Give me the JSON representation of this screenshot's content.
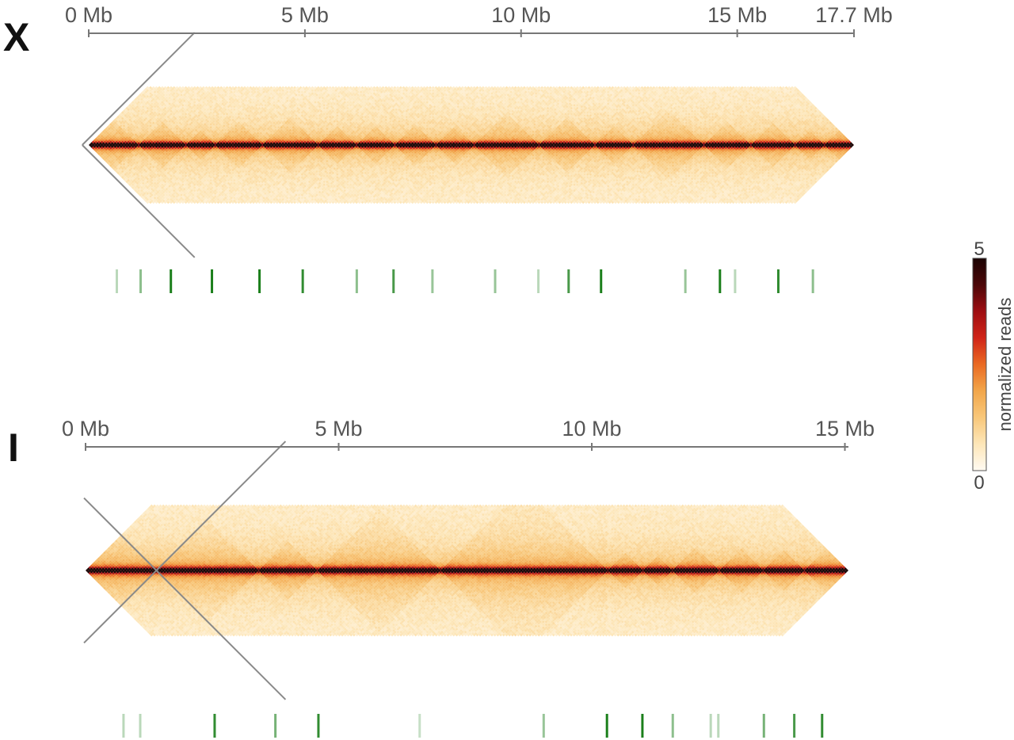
{
  "figure": {
    "colormap": [
      "#fffaf2",
      "#fde6b8",
      "#f8c77a",
      "#f2a64a",
      "#ea6a22",
      "#d02418",
      "#9e0e12",
      "#4c0708",
      "#1a0303"
    ],
    "axis_color": "#777777",
    "track_color": "#1b7f1b"
  },
  "colorbar": {
    "label": "normalized reads",
    "min_label": "0",
    "max_label": "5",
    "range": [
      0,
      5
    ]
  },
  "chart_data": [
    {
      "type": "heatmap",
      "panel_label": "X",
      "title": "",
      "xlabel": "",
      "ylabel": "",
      "xlim": [
        0,
        17.7
      ],
      "unit": "Mb",
      "ticks": [
        0,
        5,
        10,
        15,
        17.7
      ],
      "tick_labels": [
        "0 Mb",
        "5 Mb",
        "10 Mb",
        "15 Mb",
        "17.7 Mb"
      ],
      "triangle_view": true,
      "max_distance_mb": 2.6,
      "value_range": [
        0,
        5
      ],
      "boundaries_mb": [
        0.0,
        1.13,
        2.25,
        2.9,
        4.0,
        5.3,
        6.2,
        7.05,
        8.0,
        8.95,
        10.4,
        11.7,
        12.6,
        14.2,
        15.3,
        16.35,
        17.0,
        17.7
      ],
      "boundary_ticks": [
        {
          "pos": 0.65,
          "strength": 0.3
        },
        {
          "pos": 1.2,
          "strength": 0.5
        },
        {
          "pos": 1.9,
          "strength": 1.0
        },
        {
          "pos": 2.85,
          "strength": 1.0
        },
        {
          "pos": 3.95,
          "strength": 1.0
        },
        {
          "pos": 4.95,
          "strength": 0.9
        },
        {
          "pos": 6.2,
          "strength": 0.5
        },
        {
          "pos": 7.05,
          "strength": 0.8
        },
        {
          "pos": 7.95,
          "strength": 0.45
        },
        {
          "pos": 9.4,
          "strength": 0.45
        },
        {
          "pos": 10.4,
          "strength": 0.3
        },
        {
          "pos": 11.1,
          "strength": 0.8
        },
        {
          "pos": 11.85,
          "strength": 1.0
        },
        {
          "pos": 13.8,
          "strength": 0.45
        },
        {
          "pos": 14.6,
          "strength": 1.0
        },
        {
          "pos": 14.95,
          "strength": 0.3
        },
        {
          "pos": 15.95,
          "strength": 0.9
        },
        {
          "pos": 16.75,
          "strength": 0.5
        }
      ],
      "guide_lines": [
        {
          "apex_mb": -0.15,
          "direction": "up-right"
        },
        {
          "apex_mb": -0.15,
          "direction": "down-right"
        }
      ]
    },
    {
      "type": "heatmap",
      "panel_label": "I",
      "title": "",
      "xlabel": "",
      "ylabel": "",
      "xlim": [
        0,
        15.07
      ],
      "unit": "Mb",
      "ticks": [
        0,
        5,
        10,
        15
      ],
      "tick_labels": [
        "0 Mb",
        "5 Mb",
        "10 Mb",
        "15 Mb"
      ],
      "triangle_view": true,
      "max_distance_mb": 2.55,
      "value_range": [
        0,
        5
      ],
      "boundaries_mb": [
        0.0,
        1.4,
        3.4,
        4.6,
        7.0,
        10.3,
        11.0,
        11.6,
        12.5,
        13.4,
        14.2,
        15.07
      ],
      "boundary_ticks": [
        {
          "pos": 0.75,
          "strength": 0.3
        },
        {
          "pos": 1.08,
          "strength": 0.3
        },
        {
          "pos": 2.55,
          "strength": 0.9
        },
        {
          "pos": 3.75,
          "strength": 0.6
        },
        {
          "pos": 4.6,
          "strength": 0.9
        },
        {
          "pos": 6.6,
          "strength": 0.25
        },
        {
          "pos": 9.05,
          "strength": 0.45
        },
        {
          "pos": 10.3,
          "strength": 1.0
        },
        {
          "pos": 11.0,
          "strength": 1.0
        },
        {
          "pos": 11.6,
          "strength": 0.5
        },
        {
          "pos": 12.35,
          "strength": 0.3
        },
        {
          "pos": 12.5,
          "strength": 0.3
        },
        {
          "pos": 13.4,
          "strength": 0.6
        },
        {
          "pos": 14.0,
          "strength": 0.8
        },
        {
          "pos": 14.55,
          "strength": 0.9
        }
      ],
      "guide_lines": [
        {
          "apex_mb": 1.4,
          "direction": "up-right"
        },
        {
          "apex_mb": 1.4,
          "direction": "down-right"
        },
        {
          "apex_mb": 1.4,
          "direction": "up-left"
        },
        {
          "apex_mb": 1.4,
          "direction": "down-left"
        }
      ]
    }
  ]
}
